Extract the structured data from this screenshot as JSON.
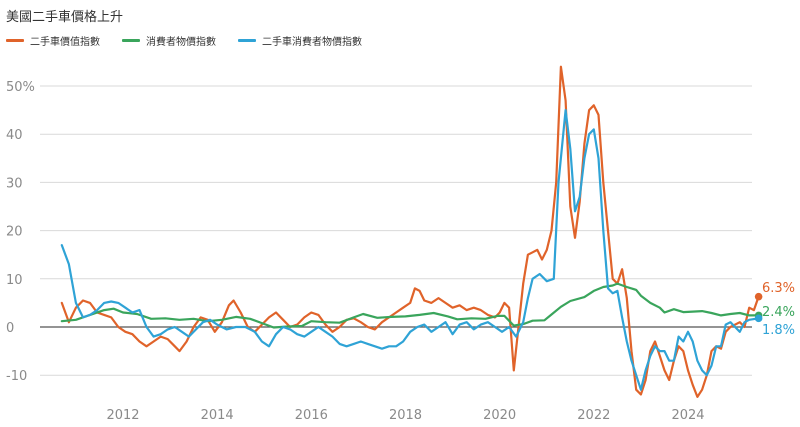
{
  "chart_data": {
    "type": "line",
    "title": "美國二手車價格上升",
    "xlabel": "",
    "ylabel": "",
    "xlim": [
      2010.5,
      2025.6
    ],
    "ylim": [
      -15,
      55
    ],
    "x_ticks": [
      "2012",
      "2014",
      "2016",
      "2018",
      "2020",
      "2022",
      "2024"
    ],
    "y_ticks": [
      {
        "value": 50,
        "label": "50%"
      },
      {
        "value": 40,
        "label": "40"
      },
      {
        "value": 30,
        "label": "30"
      },
      {
        "value": 20,
        "label": "20"
      },
      {
        "value": 10,
        "label": "10"
      },
      {
        "value": 0,
        "label": "0"
      },
      {
        "value": -10,
        "label": "-10"
      }
    ],
    "grid": true,
    "legend_position": "top-left",
    "series": [
      {
        "name": "二手車價值指數",
        "color": "#E0632A",
        "end_label": "6.3%",
        "points": [
          [
            2010.7,
            5
          ],
          [
            2010.85,
            1
          ],
          [
            2011.0,
            4
          ],
          [
            2011.15,
            5.5
          ],
          [
            2011.3,
            5
          ],
          [
            2011.45,
            3
          ],
          [
            2011.6,
            2.5
          ],
          [
            2011.75,
            2
          ],
          [
            2011.9,
            0
          ],
          [
            2012.05,
            -1
          ],
          [
            2012.2,
            -1.5
          ],
          [
            2012.35,
            -3
          ],
          [
            2012.5,
            -4
          ],
          [
            2012.65,
            -3
          ],
          [
            2012.8,
            -2
          ],
          [
            2012.95,
            -2.5
          ],
          [
            2013.1,
            -4
          ],
          [
            2013.2,
            -5
          ],
          [
            2013.35,
            -3
          ],
          [
            2013.5,
            0
          ],
          [
            2013.65,
            2
          ],
          [
            2013.8,
            1.5
          ],
          [
            2013.95,
            -1
          ],
          [
            2014.1,
            1
          ],
          [
            2014.25,
            4.5
          ],
          [
            2014.35,
            5.5
          ],
          [
            2014.5,
            3
          ],
          [
            2014.65,
            0
          ],
          [
            2014.8,
            -1
          ],
          [
            2014.95,
            0.5
          ],
          [
            2015.1,
            2
          ],
          [
            2015.25,
            3
          ],
          [
            2015.4,
            1.5
          ],
          [
            2015.55,
            0
          ],
          [
            2015.7,
            0.5
          ],
          [
            2015.85,
            2
          ],
          [
            2016.0,
            3
          ],
          [
            2016.15,
            2.5
          ],
          [
            2016.3,
            0.5
          ],
          [
            2016.45,
            -1
          ],
          [
            2016.6,
            0
          ],
          [
            2016.75,
            1.5
          ],
          [
            2016.9,
            1.8
          ],
          [
            2017.05,
            1
          ],
          [
            2017.2,
            0
          ],
          [
            2017.35,
            -0.5
          ],
          [
            2017.5,
            1
          ],
          [
            2017.65,
            2
          ],
          [
            2017.8,
            3
          ],
          [
            2017.95,
            4
          ],
          [
            2018.1,
            5
          ],
          [
            2018.2,
            8
          ],
          [
            2018.3,
            7.5
          ],
          [
            2018.4,
            5.5
          ],
          [
            2018.55,
            5
          ],
          [
            2018.7,
            6
          ],
          [
            2018.85,
            5
          ],
          [
            2019.0,
            4
          ],
          [
            2019.15,
            4.5
          ],
          [
            2019.3,
            3.5
          ],
          [
            2019.45,
            4
          ],
          [
            2019.6,
            3.5
          ],
          [
            2019.75,
            2.5
          ],
          [
            2019.9,
            2
          ],
          [
            2020.0,
            3
          ],
          [
            2020.1,
            5
          ],
          [
            2020.2,
            4
          ],
          [
            2020.3,
            -9
          ],
          [
            2020.4,
            0
          ],
          [
            2020.5,
            9
          ],
          [
            2020.6,
            15
          ],
          [
            2020.7,
            15.5
          ],
          [
            2020.8,
            16
          ],
          [
            2020.9,
            14
          ],
          [
            2021.0,
            16
          ],
          [
            2021.1,
            20
          ],
          [
            2021.2,
            30
          ],
          [
            2021.3,
            54
          ],
          [
            2021.4,
            47
          ],
          [
            2021.5,
            25
          ],
          [
            2021.6,
            18.5
          ],
          [
            2021.7,
            26
          ],
          [
            2021.8,
            38
          ],
          [
            2021.9,
            45
          ],
          [
            2022.0,
            46
          ],
          [
            2022.1,
            44
          ],
          [
            2022.2,
            30
          ],
          [
            2022.3,
            20
          ],
          [
            2022.4,
            10
          ],
          [
            2022.5,
            9
          ],
          [
            2022.6,
            12
          ],
          [
            2022.7,
            6
          ],
          [
            2022.8,
            -5
          ],
          [
            2022.9,
            -13
          ],
          [
            2023.0,
            -14
          ],
          [
            2023.1,
            -11
          ],
          [
            2023.2,
            -5
          ],
          [
            2023.3,
            -3
          ],
          [
            2023.4,
            -6
          ],
          [
            2023.5,
            -9
          ],
          [
            2023.6,
            -11
          ],
          [
            2023.7,
            -7
          ],
          [
            2023.8,
            -4
          ],
          [
            2023.9,
            -5
          ],
          [
            2024.0,
            -9
          ],
          [
            2024.1,
            -12
          ],
          [
            2024.2,
            -14.5
          ],
          [
            2024.3,
            -13
          ],
          [
            2024.4,
            -10
          ],
          [
            2024.5,
            -5
          ],
          [
            2024.6,
            -4
          ],
          [
            2024.7,
            -4.5
          ],
          [
            2024.8,
            -1
          ],
          [
            2024.9,
            0
          ],
          [
            2025.0,
            0.5
          ],
          [
            2025.1,
            1
          ],
          [
            2025.2,
            0
          ],
          [
            2025.3,
            4
          ],
          [
            2025.4,
            3.5
          ],
          [
            2025.5,
            6.3
          ]
        ]
      },
      {
        "name": "消費者物價指數",
        "color": "#3AA55C",
        "end_label": "2.4%",
        "points": [
          [
            2010.7,
            1.2
          ],
          [
            2011.0,
            1.5
          ],
          [
            2011.3,
            2.5
          ],
          [
            2011.6,
            3.5
          ],
          [
            2011.8,
            3.8
          ],
          [
            2012.0,
            3
          ],
          [
            2012.3,
            2.7
          ],
          [
            2012.6,
            1.7
          ],
          [
            2012.9,
            1.8
          ],
          [
            2013.2,
            1.5
          ],
          [
            2013.5,
            1.7
          ],
          [
            2013.8,
            1.2
          ],
          [
            2014.1,
            1.5
          ],
          [
            2014.4,
            2.1
          ],
          [
            2014.7,
            1.7
          ],
          [
            2014.95,
            0.8
          ],
          [
            2015.2,
            -0.1
          ],
          [
            2015.5,
            0.1
          ],
          [
            2015.8,
            0.2
          ],
          [
            2016.0,
            1.2
          ],
          [
            2016.3,
            1.0
          ],
          [
            2016.6,
            0.9
          ],
          [
            2016.9,
            2.0
          ],
          [
            2017.1,
            2.7
          ],
          [
            2017.4,
            1.9
          ],
          [
            2017.7,
            2.1
          ],
          [
            2018.0,
            2.2
          ],
          [
            2018.3,
            2.5
          ],
          [
            2018.6,
            2.9
          ],
          [
            2018.9,
            2.2
          ],
          [
            2019.1,
            1.6
          ],
          [
            2019.4,
            1.8
          ],
          [
            2019.7,
            1.7
          ],
          [
            2019.95,
            2.3
          ],
          [
            2020.1,
            2.3
          ],
          [
            2020.3,
            0.3
          ],
          [
            2020.5,
            0.6
          ],
          [
            2020.7,
            1.3
          ],
          [
            2020.95,
            1.4
          ],
          [
            2021.1,
            2.6
          ],
          [
            2021.3,
            4.2
          ],
          [
            2021.5,
            5.4
          ],
          [
            2021.8,
            6.2
          ],
          [
            2022.0,
            7.5
          ],
          [
            2022.2,
            8.3
          ],
          [
            2022.4,
            8.6
          ],
          [
            2022.5,
            9.0
          ],
          [
            2022.7,
            8.3
          ],
          [
            2022.9,
            7.7
          ],
          [
            2023.0,
            6.5
          ],
          [
            2023.2,
            5.0
          ],
          [
            2023.4,
            4.0
          ],
          [
            2023.5,
            3.0
          ],
          [
            2023.7,
            3.7
          ],
          [
            2023.9,
            3.1
          ],
          [
            2024.1,
            3.2
          ],
          [
            2024.3,
            3.3
          ],
          [
            2024.5,
            2.9
          ],
          [
            2024.7,
            2.4
          ],
          [
            2024.9,
            2.7
          ],
          [
            2025.1,
            2.9
          ],
          [
            2025.3,
            2.4
          ],
          [
            2025.5,
            2.4
          ]
        ]
      },
      {
        "name": "二手車消費者物價指數",
        "color": "#2FA3D6",
        "end_label": "1.8%",
        "points": [
          [
            2010.7,
            17
          ],
          [
            2010.85,
            13
          ],
          [
            2011.0,
            5
          ],
          [
            2011.15,
            2
          ],
          [
            2011.3,
            2.5
          ],
          [
            2011.45,
            3.5
          ],
          [
            2011.6,
            5
          ],
          [
            2011.75,
            5.3
          ],
          [
            2011.9,
            5
          ],
          [
            2012.05,
            4
          ],
          [
            2012.2,
            3
          ],
          [
            2012.35,
            3.5
          ],
          [
            2012.5,
            0
          ],
          [
            2012.65,
            -2
          ],
          [
            2012.8,
            -1.5
          ],
          [
            2012.95,
            -0.5
          ],
          [
            2013.1,
            0
          ],
          [
            2013.25,
            -1
          ],
          [
            2013.4,
            -2
          ],
          [
            2013.55,
            -0.5
          ],
          [
            2013.7,
            1
          ],
          [
            2013.85,
            1.5
          ],
          [
            2014.0,
            0.5
          ],
          [
            2014.2,
            -0.5
          ],
          [
            2014.4,
            0
          ],
          [
            2014.6,
            0
          ],
          [
            2014.8,
            -1
          ],
          [
            2014.95,
            -3
          ],
          [
            2015.1,
            -4
          ],
          [
            2015.25,
            -1.5
          ],
          [
            2015.4,
            0
          ],
          [
            2015.55,
            -0.5
          ],
          [
            2015.7,
            -1.5
          ],
          [
            2015.85,
            -2
          ],
          [
            2016.0,
            -1
          ],
          [
            2016.15,
            0
          ],
          [
            2016.3,
            -1
          ],
          [
            2016.45,
            -2
          ],
          [
            2016.6,
            -3.5
          ],
          [
            2016.75,
            -4
          ],
          [
            2016.9,
            -3.5
          ],
          [
            2017.05,
            -3
          ],
          [
            2017.2,
            -3.5
          ],
          [
            2017.35,
            -4
          ],
          [
            2017.5,
            -4.5
          ],
          [
            2017.65,
            -4
          ],
          [
            2017.8,
            -4
          ],
          [
            2017.95,
            -3
          ],
          [
            2018.1,
            -1
          ],
          [
            2018.25,
            0
          ],
          [
            2018.4,
            0.5
          ],
          [
            2018.55,
            -1
          ],
          [
            2018.7,
            0
          ],
          [
            2018.85,
            1
          ],
          [
            2019.0,
            -1.5
          ],
          [
            2019.15,
            0.5
          ],
          [
            2019.3,
            1
          ],
          [
            2019.45,
            -0.5
          ],
          [
            2019.6,
            0.5
          ],
          [
            2019.75,
            1
          ],
          [
            2019.9,
            0
          ],
          [
            2020.05,
            -1
          ],
          [
            2020.2,
            0
          ],
          [
            2020.35,
            -2
          ],
          [
            2020.5,
            1
          ],
          [
            2020.6,
            6
          ],
          [
            2020.7,
            10
          ],
          [
            2020.85,
            11
          ],
          [
            2021.0,
            9.5
          ],
          [
            2021.15,
            10
          ],
          [
            2021.25,
            30
          ],
          [
            2021.4,
            45
          ],
          [
            2021.5,
            37
          ],
          [
            2021.6,
            24
          ],
          [
            2021.7,
            27
          ],
          [
            2021.8,
            35
          ],
          [
            2021.9,
            40
          ],
          [
            2022.0,
            41
          ],
          [
            2022.1,
            35
          ],
          [
            2022.2,
            20
          ],
          [
            2022.3,
            8
          ],
          [
            2022.4,
            7
          ],
          [
            2022.5,
            7.5
          ],
          [
            2022.6,
            2
          ],
          [
            2022.7,
            -3
          ],
          [
            2022.8,
            -7
          ],
          [
            2022.9,
            -10
          ],
          [
            2023.0,
            -13
          ],
          [
            2023.1,
            -9
          ],
          [
            2023.2,
            -6
          ],
          [
            2023.3,
            -4
          ],
          [
            2023.4,
            -5
          ],
          [
            2023.5,
            -5
          ],
          [
            2023.6,
            -7
          ],
          [
            2023.7,
            -7
          ],
          [
            2023.8,
            -2
          ],
          [
            2023.9,
            -3
          ],
          [
            2024.0,
            -1
          ],
          [
            2024.1,
            -3
          ],
          [
            2024.2,
            -7
          ],
          [
            2024.3,
            -9
          ],
          [
            2024.4,
            -10
          ],
          [
            2024.5,
            -8
          ],
          [
            2024.6,
            -4
          ],
          [
            2024.7,
            -4
          ],
          [
            2024.8,
            0.5
          ],
          [
            2024.9,
            1
          ],
          [
            2025.0,
            0
          ],
          [
            2025.1,
            -1
          ],
          [
            2025.2,
            1
          ],
          [
            2025.3,
            1.5
          ],
          [
            2025.5,
            1.8
          ]
        ]
      }
    ]
  }
}
